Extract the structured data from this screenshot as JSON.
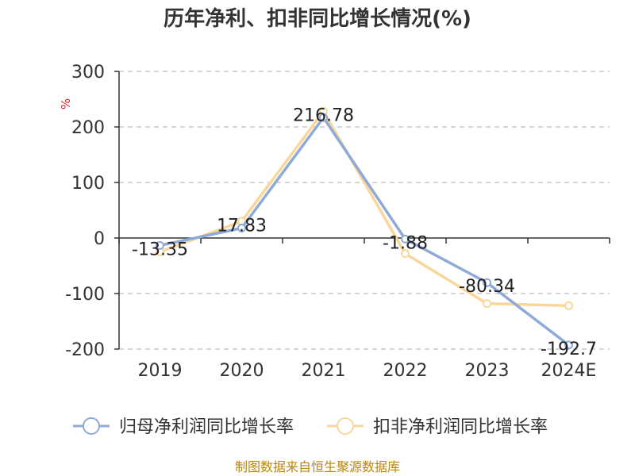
{
  "chart_data": {
    "type": "line",
    "title": "历年净利、扣非同比增长情况(%)",
    "ylabel": "%",
    "ylim": [
      -200,
      300
    ],
    "yticks": [
      300,
      200,
      100,
      0,
      -100,
      -200
    ],
    "grid": true,
    "legend_position": "bottom",
    "categories": [
      "2019",
      "2020",
      "2021",
      "2022",
      "2023",
      "2024E"
    ],
    "series": [
      {
        "name": "归母净利润同比增长率",
        "color": "#8eaad8",
        "values": [
          -13.35,
          17.83,
          216.78,
          -1.88,
          -80.34,
          -192.7
        ],
        "labels": [
          "-13.35",
          "17.83",
          "216.78",
          "-1.88",
          "-80.34",
          "-192.7"
        ]
      },
      {
        "name": "扣非净利润同比增长率",
        "color": "#f9d79a",
        "values": [
          -25,
          30,
          228,
          -28,
          -118,
          -122
        ]
      }
    ],
    "source": "制图数据来自恒生聚源数据库"
  }
}
